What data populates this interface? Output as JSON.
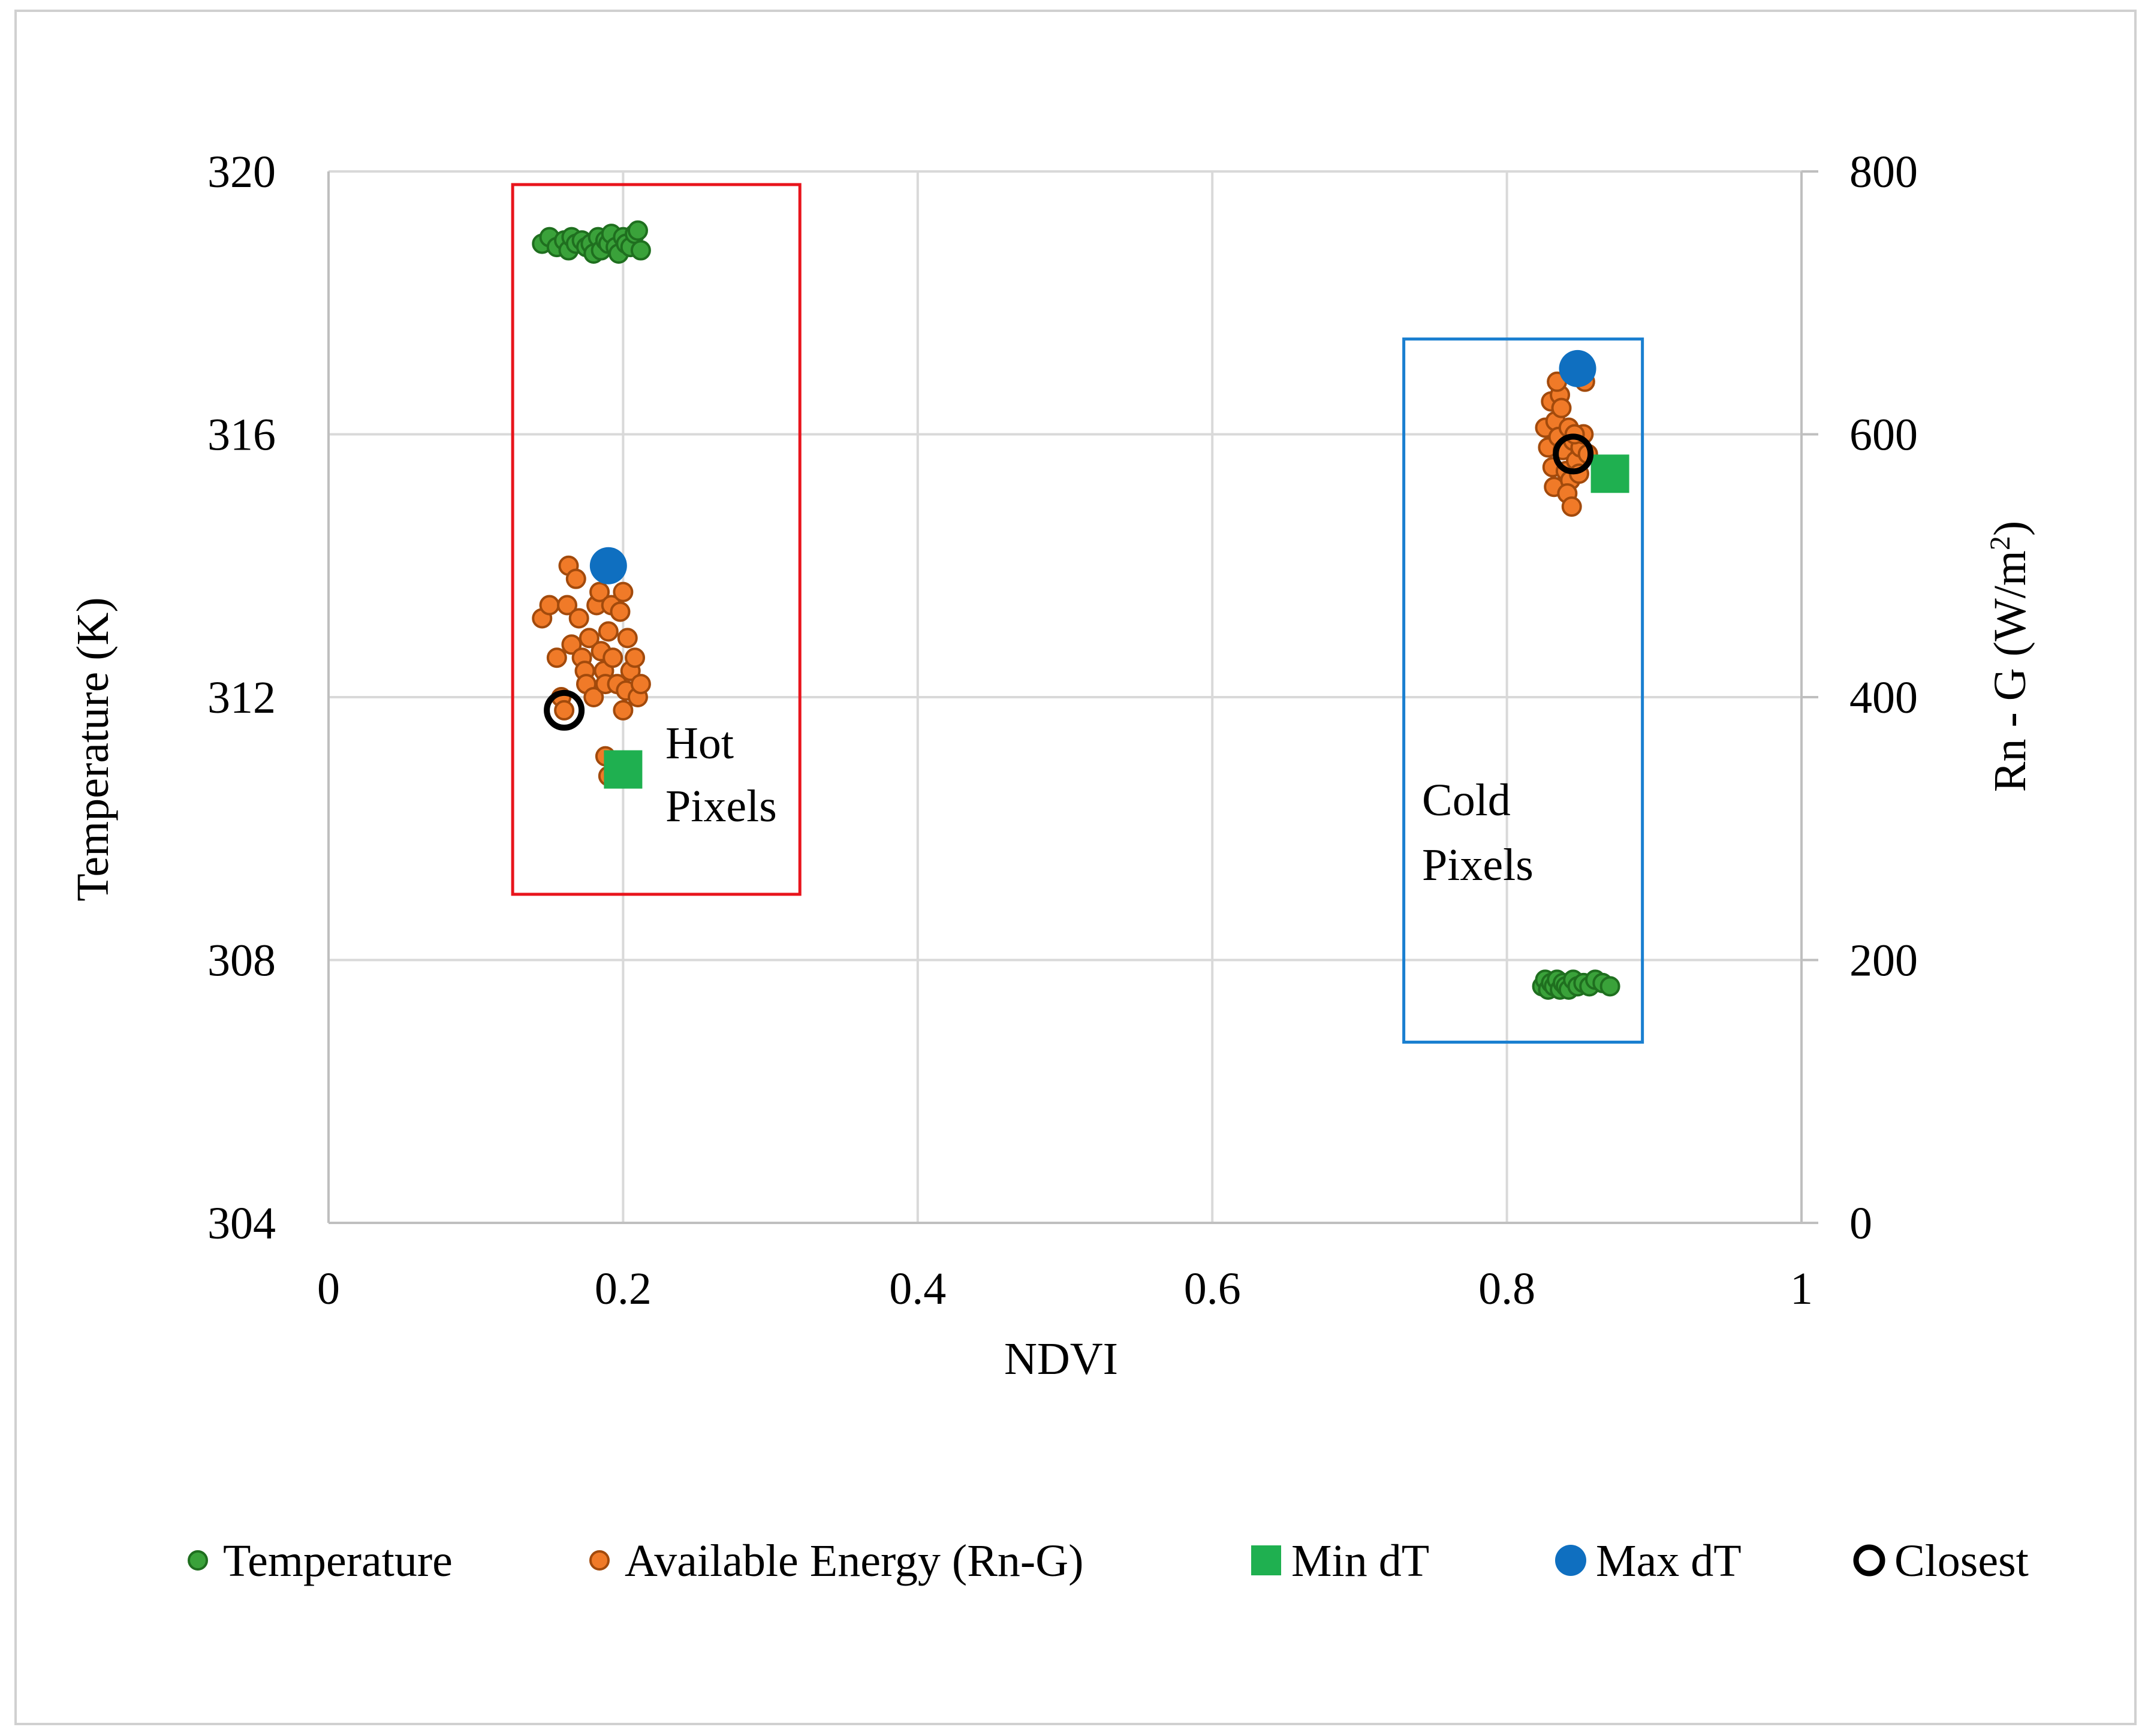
{
  "chart_data": {
    "type": "scatter",
    "title": "",
    "xlabel": "NDVI",
    "ylabel": "Temperature (K)",
    "y2label_prefix": "Rn - G (W/m",
    "y2label_sup": "2",
    "y2label_suffix": ")",
    "xlim": [
      0,
      1
    ],
    "ylim": [
      304,
      320
    ],
    "y2lim": [
      0,
      800
    ],
    "x_ticks": [
      "0",
      "0.2",
      "0.4",
      "0.6",
      "0.8",
      "1"
    ],
    "y_ticks": [
      "304",
      "308",
      "312",
      "316",
      "320"
    ],
    "y2_ticks": [
      "0",
      "200",
      "400",
      "600",
      "800"
    ],
    "grid": true,
    "legend_position": "bottom",
    "colors": {
      "temperature": "#3aa23a",
      "temperature_edge": "#1f6f1f",
      "energy": "#f07a28",
      "energy_edge": "#a24a0c",
      "min_dt": "#1fb050",
      "max_dt": "#0f6fc0",
      "closest": "#000000",
      "hot_box": "#e8141c",
      "cold_box": "#1a7fd0",
      "grid": "#d9d9d9",
      "axis": "#bfbfbf"
    },
    "annotations": {
      "hot_line1": "Hot",
      "hot_line2": "Pixels",
      "cold_line1": "Cold",
      "cold_line2": "Pixels"
    },
    "regions": [
      {
        "name": "hot",
        "x_range": [
          0.125,
          0.32
        ],
        "y_range": [
          309.0,
          319.8
        ]
      },
      {
        "name": "cold",
        "x_range": [
          0.73,
          0.892
        ],
        "y_range": [
          306.75,
          317.45
        ]
      }
    ],
    "series": [
      {
        "name": "Temperature",
        "axis": "left",
        "x": [
          0.145,
          0.15,
          0.155,
          0.16,
          0.163,
          0.165,
          0.168,
          0.172,
          0.175,
          0.178,
          0.18,
          0.183,
          0.185,
          0.188,
          0.19,
          0.192,
          0.195,
          0.197,
          0.2,
          0.202,
          0.205,
          0.208,
          0.21,
          0.212,
          0.824,
          0.826,
          0.828,
          0.83,
          0.832,
          0.834,
          0.836,
          0.838,
          0.84,
          0.842,
          0.845,
          0.848,
          0.852,
          0.856,
          0.86,
          0.865,
          0.87
        ],
        "y": [
          318.9,
          319.0,
          318.85,
          318.95,
          318.8,
          319.0,
          318.9,
          318.95,
          318.85,
          318.9,
          318.75,
          319.0,
          318.8,
          318.95,
          318.9,
          319.05,
          318.85,
          318.75,
          319.0,
          318.9,
          318.85,
          319.05,
          319.1,
          318.8,
          307.6,
          307.7,
          307.55,
          307.65,
          307.6,
          307.7,
          307.55,
          307.65,
          307.6,
          307.55,
          307.7,
          307.6,
          307.65,
          307.6,
          307.7,
          307.65,
          307.6
        ]
      },
      {
        "name": "Available Energy (Rn-G)",
        "axis": "right",
        "x": [
          0.145,
          0.15,
          0.155,
          0.158,
          0.16,
          0.162,
          0.163,
          0.165,
          0.168,
          0.17,
          0.172,
          0.174,
          0.175,
          0.177,
          0.18,
          0.182,
          0.184,
          0.185,
          0.187,
          0.188,
          0.19,
          0.19,
          0.192,
          0.193,
          0.195,
          0.196,
          0.198,
          0.2,
          0.2,
          0.202,
          0.203,
          0.205,
          0.208,
          0.21,
          0.212,
          0.188,
          0.19,
          0.826,
          0.828,
          0.83,
          0.831,
          0.832,
          0.833,
          0.835,
          0.836,
          0.838,
          0.84,
          0.842,
          0.843,
          0.845,
          0.847,
          0.85,
          0.852,
          0.855,
          0.834,
          0.837,
          0.841,
          0.844,
          0.846,
          0.849,
          0.853
        ],
        "y": [
          460,
          470,
          430,
          400,
          390,
          470,
          500,
          440,
          490,
          460,
          430,
          420,
          410,
          445,
          400,
          470,
          480,
          435,
          420,
          410,
          495,
          450,
          470,
          430,
          500,
          410,
          465,
          390,
          480,
          405,
          445,
          420,
          430,
          400,
          410,
          355,
          340,
          605,
          590,
          625,
          575,
          560,
          610,
          598,
          630,
          588,
          572,
          605,
          565,
          595,
          580,
          590,
          600,
          585,
          640,
          620,
          555,
          545,
          600,
          570,
          640
        ]
      },
      {
        "name": "Min dT",
        "axis": "left",
        "x": [
          0.2,
          0.87
        ],
        "y": [
          310.9,
          315.4
        ]
      },
      {
        "name": "Max dT",
        "axis": "left",
        "x": [
          0.19,
          0.848
        ],
        "y": [
          314.0,
          317.0
        ]
      },
      {
        "name": "Closest",
        "axis": "left",
        "x": [
          0.16,
          0.845
        ],
        "y": [
          311.8,
          315.7
        ]
      }
    ],
    "legend": [
      {
        "label": "Temperature",
        "marker": "circle-green"
      },
      {
        "label": "Available Energy (Rn-G)",
        "marker": "circle-orange"
      },
      {
        "label": "Min dT",
        "marker": "square-green"
      },
      {
        "label": "Max dT",
        "marker": "circle-blue"
      },
      {
        "label": "Closest",
        "marker": "ring-black"
      }
    ]
  }
}
